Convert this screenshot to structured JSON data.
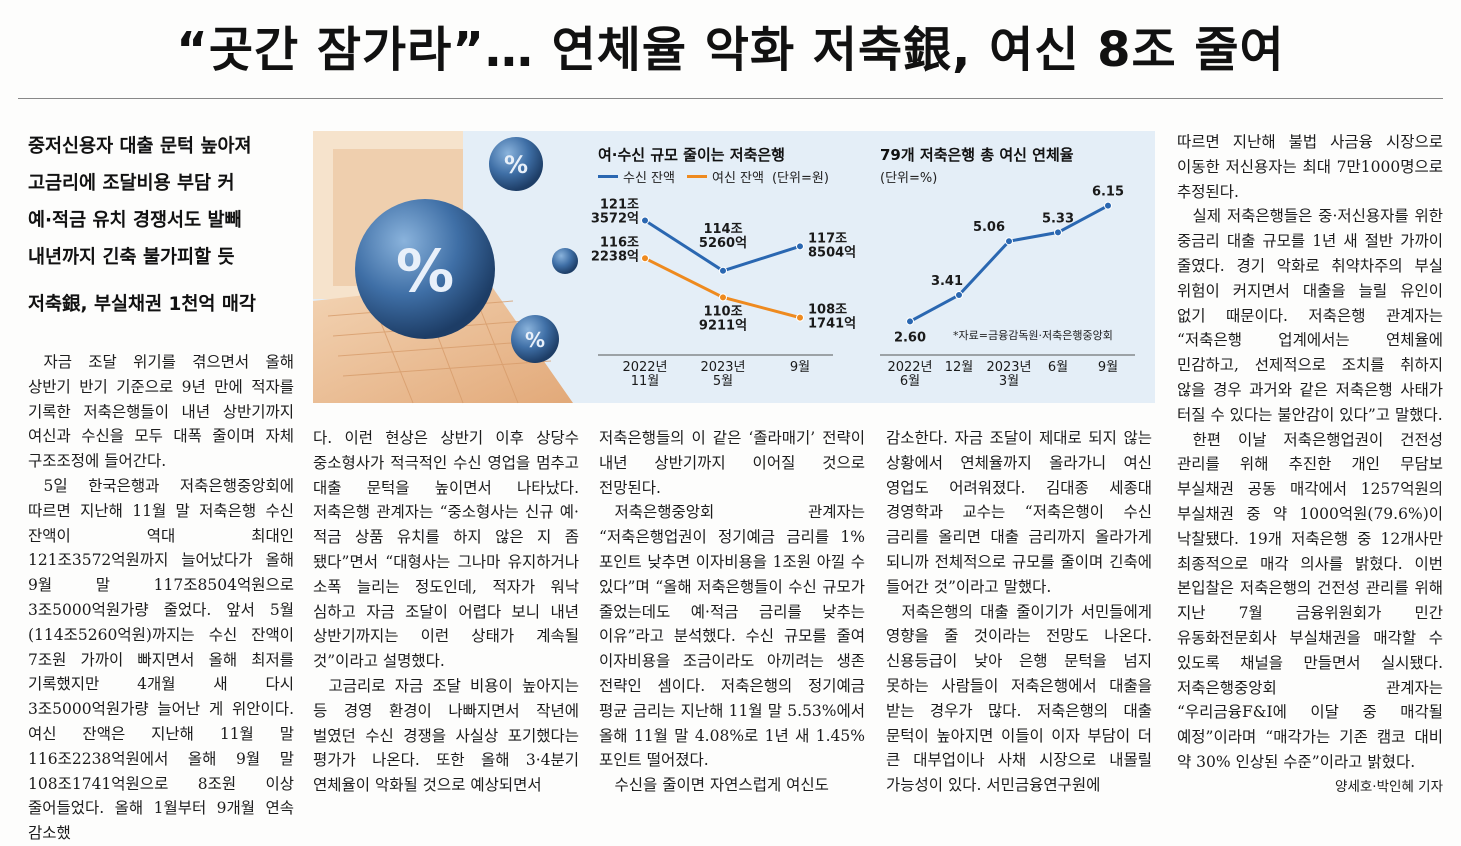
{
  "article": {
    "headline": "“곳간 잠가라”… 연체율 악화 저축銀, 여신 8조 줄여",
    "subheads": [
      "중저신용자 대출 문턱 높아져",
      "고금리에 조달비용 부담 커",
      "예·적금 유치 경쟁서도 발빼",
      "내년까지 긴축 불가피할 듯"
    ],
    "subhead2": "저축銀, 부실채권 1천억 매각",
    "byline": "양세호·박인혜 기자",
    "columns": [
      [
        "자금 조달 위기를 겪으면서 올해 상반기 반기 기준으로 9년 만에 적자를 기록한 저축은행들이 내년 상반기까지 여신과 수신을 모두 대폭 줄이며 자체 구조조정에 들어간다.",
        "5일 한국은행과 저축은행중앙회에 따르면 지난해 11월 말 저축은행 수신 잔액이 역대 최대인 121조3572억원까지 늘어났다가 올해 9월 말 117조8504억원으로 3조5000억원가량 줄었다. 앞서 5월(114조5260억원)까지는 수신 잔액이 7조원 가까이 빠지면서 올해 최저를 기록했지만 4개월 새 다시 3조5000억원가량 늘어난 게 위안이다. 여신 잔액은 지난해 11월 말 116조2238억원에서 올해 9월 말 108조1741억원으로 8조원 이상 줄어들었다. 올해 1월부터 9개월 연속 감소했"
      ],
      [
        "다. 이런 현상은 상반기 이후 상당수 중소형사가 적극적인 수신 영업을 멈추고 대출 문턱을 높이면서 나타났다. 저축은행 관계자는 “중소형사는 신규 예·적금 상품 유치를 하지 않은 지 좀 됐다”면서 “대형사는 그나마 유지하거나 소폭 늘리는 정도인데, 적자가 워낙 심하고 자금 조달이 어렵다 보니 내년 상반기까지는 이런 상태가 계속될 것”이라고 설명했다.",
        "고금리로 자금 조달 비용이 높아지는 등 경영 환경이 나빠지면서 작년에 벌였던 수신 경쟁을 사실상 포기했다는 평가가 나온다. 또한 올해 3·4분기 연체율이 악화될 것으로 예상되면서"
      ],
      [
        "저축은행들의 이 같은 ‘졸라매기’ 전략이 내년 상반기까지 이어질 것으로 전망된다.",
        "저축은행중앙회 관계자는 “저축은행업권이 정기예금 금리를 1%포인트 낮추면 이자비용을 1조원 아낄 수 있다”며 “올해 저축은행들이 수신 규모가 줄었는데도 예·적금 금리를 낮추는 이유”라고 분석했다. 수신 규모를 줄여 이자비용을 조금이라도 아끼려는 생존 전략인 셈이다. 저축은행의 정기예금 평균 금리는 지난해 11월 말 5.53%에서 올해 11월 말 4.08%로 1년 새 1.45%포인트 떨어졌다.",
        "수신을 줄이면 자연스럽게 여신도"
      ],
      [
        "감소한다. 자금 조달이 제대로 되지 않는 상황에서 연체율까지 올라가니 여신 영업도 어려워졌다. 김대종 세종대 경영학과 교수는 “저축은행이 수신 금리를 올리면 대출 금리까지 올라가게 되니까 전체적으로 규모를 줄이며 긴축에 들어간 것”이라고 말했다.",
        "저축은행의 대출 줄이기가 서민들에게 영향을 줄 것이라는 전망도 나온다. 신용등급이 낮아 은행 문턱을 넘지 못하는 사람들이 저축은행에서 대출을 받는 경우가 많다. 저축은행의 대출 문턱이 높아지면 이들이 이자 부담이 더 큰 대부업이나 사채 시장으로 내몰릴 가능성이 있다. 서민금융연구원에"
      ],
      [
        "따르면 지난해 불법 사금융 시장으로 이동한 저신용자는 최대 7만1000명으로 추정된다.",
        "실제 저축은행들은 중·저신용자를 위한 중금리 대출 규모를 1년 새 절반 가까이 줄였다. 경기 악화로 취약차주의 부실 위험이 커지면서 대출을 늘릴 유인이 없기 때문이다. 저축은행 관계자는 “저축은행 업계에서는 연체율에 민감하고, 선제적으로 조치를 취하지 않을 경우 과거와 같은 저축은행 사태가 터질 수 있다는 불안감이 있다”고 말했다.",
        "한편 이날 저축은행업권이 건전성 관리를 위해 추진한 개인 무담보 부실채권 공동 매각에서 1257억원의 부실채권 중 약 1000억원(79.6%)이 낙찰됐다. 19개 저축은행 중 12개사만 최종적으로 매각 의사를 밝혔다. 이번 본입찰은 저축은행의 건전성 관리를 위해 지난 7월 금융위원회가 민간 유동화전문회사 부실채권을 매각할 수 있도록 채널을 만들면서 실시됐다. 저축은행중앙회 관계자는 “우리금융F&I에 이달 중 매각될 예정”이라며 “매각가는 기존 캠코 대비 약 30% 인상된 수준”이라고 밝혔다."
      ]
    ]
  },
  "graphic": {
    "illustration_symbols": [
      "%",
      "%",
      "%"
    ],
    "colors": {
      "deposit": "#2a67b1",
      "loan": "#ee8a1f",
      "background": "#e4eef7"
    }
  },
  "chart_data": [
    {
      "type": "line",
      "title": "여·수신 규모 줄이는 저축은행",
      "unit_note": "(단위=원)",
      "categories": [
        "2022년\n11월",
        "2023년\n5월",
        "9월"
      ],
      "series": [
        {
          "name": "수신 잔액",
          "values": [
            121.3572,
            114.526,
            117.8504
          ],
          "labels": [
            "121조\n3572억",
            "114조\n5260억",
            "117조\n8504억"
          ]
        },
        {
          "name": "여신 잔액",
          "values": [
            116.2238,
            110.9211,
            108.1741
          ],
          "labels": [
            "116조\n2238억",
            "110조\n9211억",
            "108조\n1741억"
          ]
        }
      ],
      "ylabel": "",
      "ylim": [
        105,
        124
      ],
      "legend": "top-left",
      "grid": false
    },
    {
      "type": "line",
      "title": "79개 저축은행 총 여신 연체율",
      "unit_note": "(단위=%)",
      "source": "*자료=금융감독원·저축은행중앙회",
      "categories": [
        "2022년\n6월",
        "12월",
        "2023년\n3월",
        "6월",
        "9월"
      ],
      "series": [
        {
          "values": [
            2.6,
            3.41,
            5.06,
            5.33,
            6.15
          ],
          "labels": [
            "2.60",
            "3.41",
            "5.06",
            "5.33",
            "6.15"
          ]
        }
      ],
      "ylabel": "",
      "ylim": [
        2.0,
        6.6
      ],
      "grid": false
    }
  ]
}
